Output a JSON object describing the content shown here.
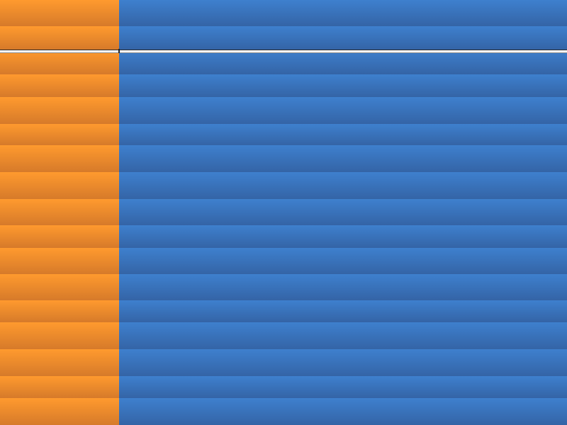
{
  "colors": {
    "left_top": "#FF9A2E",
    "left_bottom": "#D67A2A",
    "right_top": "#3E80CE",
    "right_bottom": "#3464A6"
  },
  "rows": 17
}
